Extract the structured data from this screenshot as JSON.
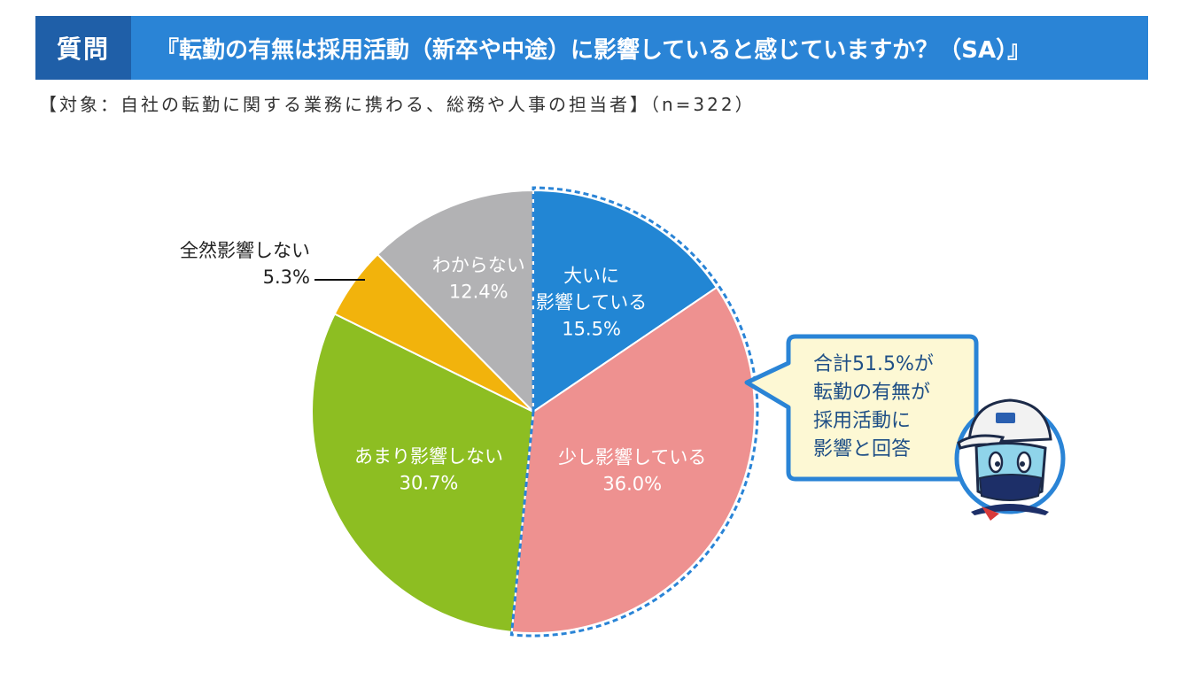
{
  "header": {
    "tag": "質問",
    "question": "『転勤の有無は採用活動（新卒や中途）に影響していると感じていますか？（SA）』"
  },
  "subtitle": "【対象：自社の転勤に関する業務に携わる、総務や人事の担当者】（n=322）",
  "callout": {
    "lines": [
      "合計51.5%が",
      "転勤の有無が",
      "採用活動に",
      "影響と回答"
    ]
  },
  "colors": {
    "header_bg": "#2a84d6",
    "tag_bg": "#1f5fa8",
    "callout_border": "#2a84d6",
    "callout_bg": "#fdf8d4"
  },
  "chart_data": {
    "type": "pie",
    "title": "",
    "start_angle_deg": 0,
    "direction": "clockwise",
    "slices": [
      {
        "label_lines": [
          "大いに",
          "影響している"
        ],
        "value": 15.5,
        "value_label": "15.5%",
        "color": "#2286d4",
        "highlighted": true
      },
      {
        "label_lines": [
          "少し影響している"
        ],
        "value": 36.0,
        "value_label": "36.0%",
        "color": "#ee9190",
        "highlighted": true
      },
      {
        "label_lines": [
          "あまり影響しない"
        ],
        "value": 30.7,
        "value_label": "30.7%",
        "color": "#8dbe22",
        "highlighted": false
      },
      {
        "label_lines": [
          "全然影響しない"
        ],
        "value": 5.3,
        "value_label": "5.3%",
        "color": "#f2b30c",
        "highlighted": false
      },
      {
        "label_lines": [
          "わからない"
        ],
        "value": 12.4,
        "value_label": "12.4%",
        "color": "#b2b2b4",
        "highlighted": false
      }
    ]
  }
}
